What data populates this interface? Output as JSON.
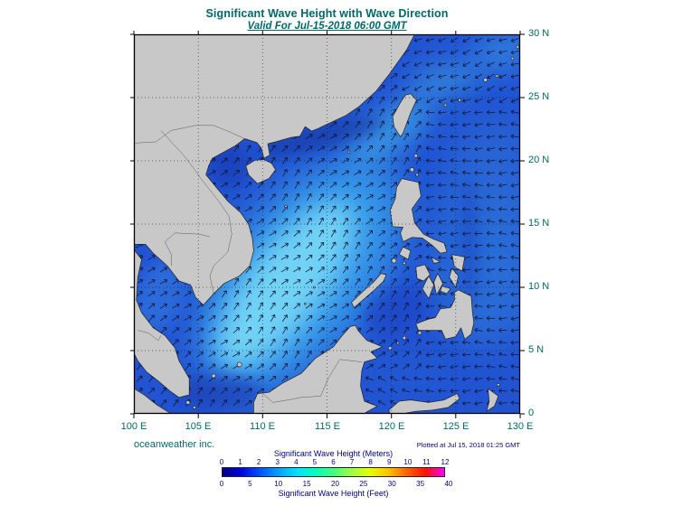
{
  "header": {
    "title": "Significant Wave Height with Wave Direction",
    "subtitle": "Valid For Jul-15-2018 06:00 GMT"
  },
  "footer": {
    "credit": "oceanweather inc.",
    "plotted": "Plotted at Jul 15, 2018 01:25 GMT"
  },
  "axes": {
    "x_ticks": [
      "100 E",
      "105 E",
      "110 E",
      "115 E",
      "120 E",
      "125 E",
      "130 E"
    ],
    "y_ticks": [
      "30 N",
      "25 N",
      "20 N",
      "15 N",
      "10 N",
      "5 N",
      "0"
    ]
  },
  "colorbar": {
    "meters_label": "Significant Wave Height (Meters)",
    "feet_label": "Significant Wave Height (Feet)",
    "meters_ticks": [
      "0",
      "1",
      "2",
      "3",
      "4",
      "5",
      "6",
      "7",
      "8",
      "9",
      "10",
      "11",
      "12"
    ],
    "feet_ticks": [
      "0",
      "5",
      "10",
      "15",
      "20",
      "25",
      "30",
      "35",
      "40"
    ],
    "gradient": [
      "#000080",
      "#0000e0",
      "#0050ff",
      "#00a0ff",
      "#00e0ff",
      "#00ffc0",
      "#40ff80",
      "#a0ff40",
      "#e8ff00",
      "#ffc000",
      "#ff6000",
      "#ff1000",
      "#ff00ff"
    ]
  },
  "map": {
    "bounds": {
      "lon_min": 100,
      "lon_max": 130,
      "lat_min": 0,
      "lat_max": 30
    },
    "colors": {
      "land": "#c8c8c8",
      "coast": "#222222",
      "ocean_base": "#2254d2",
      "text_teal": "#006868",
      "text_navy": "#000080",
      "arrow": "#101432"
    },
    "arrows": {
      "south_china_sea_toward": "NE",
      "pacific_toward": "W",
      "east_china_sea_toward": "WSW",
      "celebes_sea_toward": "WNW"
    }
  }
}
